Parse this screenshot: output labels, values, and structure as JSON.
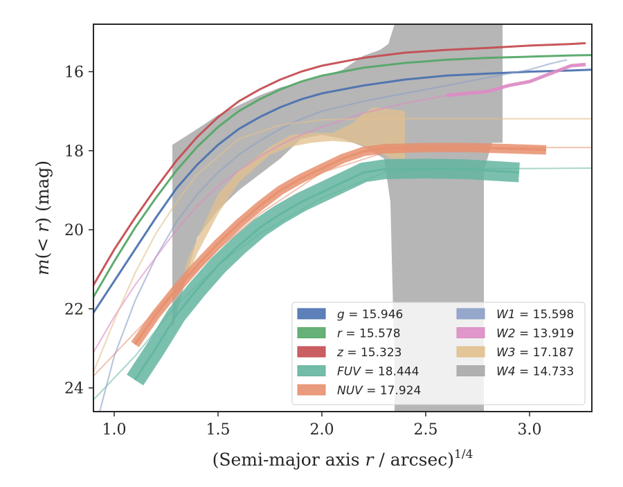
{
  "chart_data": {
    "type": "line",
    "title": "",
    "xlabel": "(Semi-major axis r / arcsec)^1/4",
    "xlabel_parts": {
      "pre": "(Semi-major axis ",
      "italic": "r",
      "mid": " / arcsec)",
      "sup": "1/4"
    },
    "ylabel": "m(< r) (mag)",
    "ylabel_parts": {
      "italic1": "m",
      "paren_open": "(",
      "italic2": "< r",
      "rest": ") (mag)"
    },
    "xlim": [
      0.9,
      3.3
    ],
    "ylim": [
      24.6,
      14.8
    ],
    "y_inverted": true,
    "xticks": [
      1.0,
      1.5,
      2.0,
      2.5,
      3.0
    ],
    "xtick_labels": [
      "1.0",
      "1.5",
      "2.0",
      "2.5",
      "3.0"
    ],
    "yticks": [
      16,
      18,
      20,
      22,
      24
    ],
    "ytick_labels": [
      "16",
      "18",
      "20",
      "22",
      "24"
    ],
    "grid": false,
    "legend_location": "lower right",
    "series": [
      {
        "name": "g = 15.946",
        "label_var": "g",
        "label_val": "= 15.946",
        "color": "#4c72b0",
        "total": 15.946,
        "x": [
          0.9,
          1.0,
          1.1,
          1.2,
          1.3,
          1.4,
          1.5,
          1.6,
          1.7,
          1.8,
          1.9,
          2.0,
          2.2,
          2.4,
          2.6,
          2.8,
          3.0,
          3.2,
          3.3
        ],
        "y": [
          22.1,
          21.3,
          20.5,
          19.7,
          18.95,
          18.35,
          17.85,
          17.45,
          17.15,
          16.9,
          16.7,
          16.55,
          16.35,
          16.2,
          16.1,
          16.05,
          16.0,
          15.97,
          15.95
        ],
        "band": 0.08,
        "ext_x": [],
        "ext_y": []
      },
      {
        "name": "r = 15.578",
        "label_var": "r",
        "label_val": "= 15.578",
        "color": "#55a868",
        "total": 15.578,
        "x": [
          0.9,
          1.0,
          1.1,
          1.2,
          1.3,
          1.4,
          1.5,
          1.6,
          1.7,
          1.8,
          1.9,
          2.0,
          2.2,
          2.4,
          2.6,
          2.8,
          3.0,
          3.2,
          3.3
        ],
        "y": [
          21.7,
          20.8,
          19.95,
          19.2,
          18.5,
          17.9,
          17.4,
          17.0,
          16.7,
          16.45,
          16.25,
          16.1,
          15.9,
          15.78,
          15.7,
          15.65,
          15.62,
          15.59,
          15.58
        ],
        "band": 0.08,
        "ext_x": [],
        "ext_y": []
      },
      {
        "name": "z = 15.323",
        "label_var": "z",
        "label_val": "= 15.323",
        "color": "#c44e52",
        "total": 15.323,
        "x": [
          0.9,
          1.0,
          1.1,
          1.2,
          1.3,
          1.4,
          1.5,
          1.6,
          1.7,
          1.8,
          1.9,
          2.0,
          2.2,
          2.4,
          2.6,
          2.8,
          3.0,
          3.2,
          3.27
        ],
        "y": [
          21.4,
          20.5,
          19.7,
          18.95,
          18.25,
          17.65,
          17.15,
          16.75,
          16.45,
          16.2,
          16.0,
          15.85,
          15.65,
          15.52,
          15.45,
          15.4,
          15.34,
          15.3,
          15.28
        ],
        "band": 0.08,
        "ext_x": [],
        "ext_y": []
      },
      {
        "name": "FUV = 18.444",
        "label_var": "FUV",
        "label_val": "= 18.444",
        "color": "#64b5a0",
        "total": 18.444,
        "x": [
          1.1,
          1.2,
          1.3,
          1.4,
          1.5,
          1.6,
          1.7,
          1.8,
          1.9,
          2.0,
          2.1,
          2.2,
          2.3,
          2.5,
          2.7,
          2.95
        ],
        "y": [
          23.8,
          23.0,
          22.15,
          21.5,
          20.9,
          20.4,
          19.95,
          19.6,
          19.3,
          19.05,
          18.8,
          18.55,
          18.47,
          18.45,
          18.47,
          18.55
        ],
        "band": 0.25,
        "ext_x": [
          0.9,
          1.1,
          1.3,
          1.5,
          1.7,
          2.0,
          2.3,
          2.6,
          3.0,
          3.3
        ],
        "ext_y": [
          24.3,
          23.2,
          21.9,
          20.9,
          20.1,
          19.2,
          18.55,
          18.45,
          18.45,
          18.44
        ]
      },
      {
        "name": "NUV = 17.924",
        "label_var": "NUV",
        "label_val": "= 17.924",
        "color": "#e8906f",
        "total": 17.924,
        "x": [
          1.1,
          1.2,
          1.3,
          1.4,
          1.5,
          1.6,
          1.7,
          1.8,
          1.9,
          2.0,
          2.1,
          2.2,
          2.3,
          2.5,
          2.7,
          2.9,
          3.08
        ],
        "y": [
          22.9,
          22.15,
          21.5,
          20.9,
          20.35,
          19.85,
          19.4,
          19.0,
          18.7,
          18.45,
          18.2,
          18.02,
          17.95,
          17.92,
          17.92,
          17.95,
          17.98
        ],
        "band": 0.12,
        "ext_x": [
          0.9,
          1.1,
          1.3,
          1.5,
          1.7,
          2.0,
          2.3,
          2.6,
          3.0,
          3.3
        ],
        "ext_y": [
          23.7,
          22.6,
          21.5,
          20.5,
          19.6,
          18.55,
          18.05,
          17.93,
          17.92,
          17.92
        ]
      },
      {
        "name": "W1 = 15.598",
        "label_var": "W1",
        "label_val": "= 15.598",
        "color": "#8c9ec8",
        "total": 15.598,
        "x": [
          0.93,
          1.0,
          1.1,
          1.2,
          1.3,
          1.4,
          1.5,
          1.6,
          1.7,
          1.8,
          1.9,
          2.0,
          2.2,
          2.4,
          2.6,
          2.8,
          3.0,
          3.1,
          3.18
        ],
        "y": [
          24.6,
          23.2,
          21.8,
          20.7,
          19.8,
          19.1,
          18.55,
          18.1,
          17.75,
          17.45,
          17.2,
          17.0,
          16.75,
          16.55,
          16.35,
          16.15,
          15.95,
          15.8,
          15.7
        ],
        "band": 0.05,
        "ext_x": [],
        "ext_y": []
      },
      {
        "name": "W2 = 13.919",
        "label_var": "W2",
        "label_val": "= 13.919",
        "color": "#dd8cc4",
        "total": 13.919,
        "x": [
          0.9,
          1.0,
          1.1,
          1.2,
          1.3,
          1.4,
          1.5,
          1.6,
          1.7,
          1.8,
          1.9,
          2.0,
          2.2,
          2.4,
          2.6,
          2.8,
          2.9,
          3.0,
          3.1,
          3.2,
          3.27
        ],
        "y": [
          23.1,
          22.2,
          21.4,
          20.7,
          20.0,
          19.4,
          18.9,
          18.5,
          18.15,
          17.85,
          17.6,
          17.4,
          17.05,
          16.8,
          16.6,
          16.5,
          16.35,
          16.25,
          16.05,
          15.85,
          15.82
        ],
        "band": 0.06,
        "ext_x": [],
        "ext_y": []
      },
      {
        "name": "W3 = 17.187",
        "label_var": "W3",
        "label_val": "= 17.187",
        "color": "#e2c08d",
        "total": 17.187,
        "x": [
          0.9,
          1.0,
          1.1,
          1.2,
          1.3,
          1.4,
          1.6,
          1.8,
          2.0,
          2.2,
          2.5,
          2.8,
          3.0,
          3.3
        ],
        "y": [
          23.6,
          22.3,
          21.1,
          20.1,
          19.3,
          18.6,
          17.7,
          17.35,
          17.22,
          17.19,
          17.19,
          17.19,
          17.19,
          17.19
        ],
        "band": 0.02,
        "ext_x": [],
        "ext_y": []
      },
      {
        "name": "W4 = 14.733",
        "label_var": "W4",
        "label_val": "= 14.733",
        "color": "#a9a9a9",
        "total": 14.733,
        "x": [],
        "y": [],
        "band": 0,
        "ext_x": [],
        "ext_y": []
      }
    ],
    "bands": [
      {
        "series": "W3",
        "color": "#e2c08d",
        "upper": [
          [
            1.28,
            22.6
          ],
          [
            1.35,
            20.8
          ],
          [
            1.5,
            19.1
          ],
          [
            1.6,
            18.5
          ],
          [
            1.75,
            17.9
          ],
          [
            1.85,
            17.6
          ],
          [
            1.95,
            17.55
          ],
          [
            2.05,
            17.55
          ],
          [
            2.15,
            17.3
          ],
          [
            2.2,
            17.05
          ],
          [
            2.25,
            16.9
          ],
          [
            2.33,
            16.95
          ],
          [
            2.4,
            17.0
          ]
        ],
        "lower": [
          [
            2.4,
            18.2
          ],
          [
            2.33,
            18.2
          ],
          [
            2.25,
            17.95
          ],
          [
            2.15,
            17.8
          ],
          [
            2.05,
            17.75
          ],
          [
            1.95,
            17.8
          ],
          [
            1.85,
            17.9
          ],
          [
            1.75,
            18.1
          ],
          [
            1.6,
            18.8
          ],
          [
            1.5,
            19.6
          ],
          [
            1.4,
            20.6
          ],
          [
            1.3,
            21.8
          ]
        ]
      },
      {
        "series": "W4",
        "color": "#a9a9a9",
        "upper": [
          [
            1.28,
            17.85
          ],
          [
            1.4,
            17.45
          ],
          [
            1.5,
            17.1
          ],
          [
            1.6,
            16.85
          ],
          [
            1.7,
            16.6
          ],
          [
            1.8,
            16.4
          ],
          [
            1.95,
            16.2
          ],
          [
            2.1,
            15.95
          ],
          [
            2.2,
            15.6
          ],
          [
            2.28,
            15.45
          ],
          [
            2.32,
            15.3
          ],
          [
            2.35,
            14.8
          ],
          [
            2.87,
            14.8
          ],
          [
            2.87,
            17.8
          ]
        ],
        "lower": [
          [
            2.82,
            17.8
          ],
          [
            2.78,
            18.5
          ],
          [
            2.78,
            24.6
          ],
          [
            2.35,
            24.6
          ],
          [
            2.35,
            23.5
          ],
          [
            2.33,
            19.3
          ],
          [
            2.3,
            18.2
          ],
          [
            2.2,
            17.9
          ],
          [
            2.1,
            17.7
          ],
          [
            2.0,
            17.6
          ],
          [
            1.9,
            17.7
          ],
          [
            1.8,
            18.2
          ],
          [
            1.7,
            18.6
          ],
          [
            1.6,
            19.0
          ],
          [
            1.5,
            19.5
          ],
          [
            1.4,
            20.2
          ],
          [
            1.28,
            22.5
          ]
        ]
      }
    ],
    "colors": {
      "axis": "#262626",
      "background": "#ffffff",
      "legend_bg": "#ffffff",
      "legend_border": "#cccccc"
    }
  }
}
